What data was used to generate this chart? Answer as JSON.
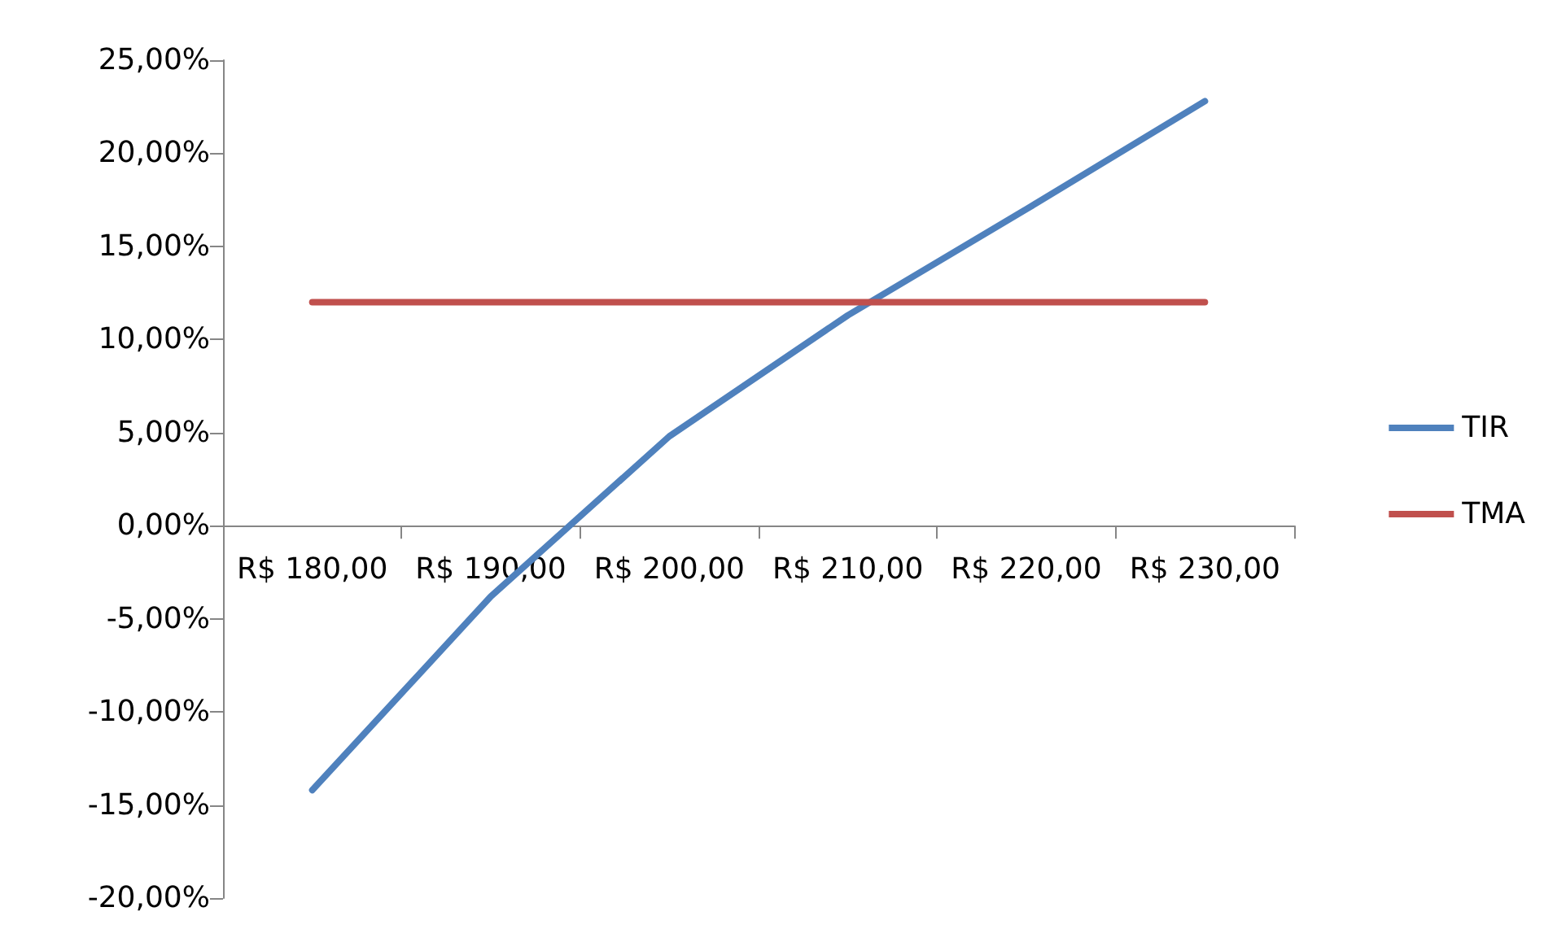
{
  "chart_data": {
    "type": "line",
    "categories": [
      "R$ 180,00",
      "R$ 190,00",
      "R$ 200,00",
      "R$ 210,00",
      "R$ 220,00",
      "R$ 230,00"
    ],
    "series": [
      {
        "name": "TIR",
        "color": "#4f81bd",
        "values": [
          -14.2,
          -3.8,
          4.8,
          11.3,
          17.0,
          22.8
        ]
      },
      {
        "name": "TMA",
        "color": "#c0504d",
        "values": [
          12,
          12,
          12,
          12,
          12,
          12
        ]
      }
    ],
    "ylim": [
      -20,
      25
    ],
    "yticks": [
      {
        "value": -20,
        "label": "-20,00%"
      },
      {
        "value": -15,
        "label": "-15,00%"
      },
      {
        "value": -10,
        "label": "-10,00%"
      },
      {
        "value": -5,
        "label": "-5,00%"
      },
      {
        "value": 0,
        "label": "0,00%"
      },
      {
        "value": 5,
        "label": "5,00%"
      },
      {
        "value": 10,
        "label": "10,00%"
      },
      {
        "value": 15,
        "label": "15,00%"
      },
      {
        "value": 20,
        "label": "20,00%"
      },
      {
        "value": 25,
        "label": "25,00%"
      }
    ],
    "legend": "right",
    "marker": "none",
    "line_style": "solid"
  }
}
